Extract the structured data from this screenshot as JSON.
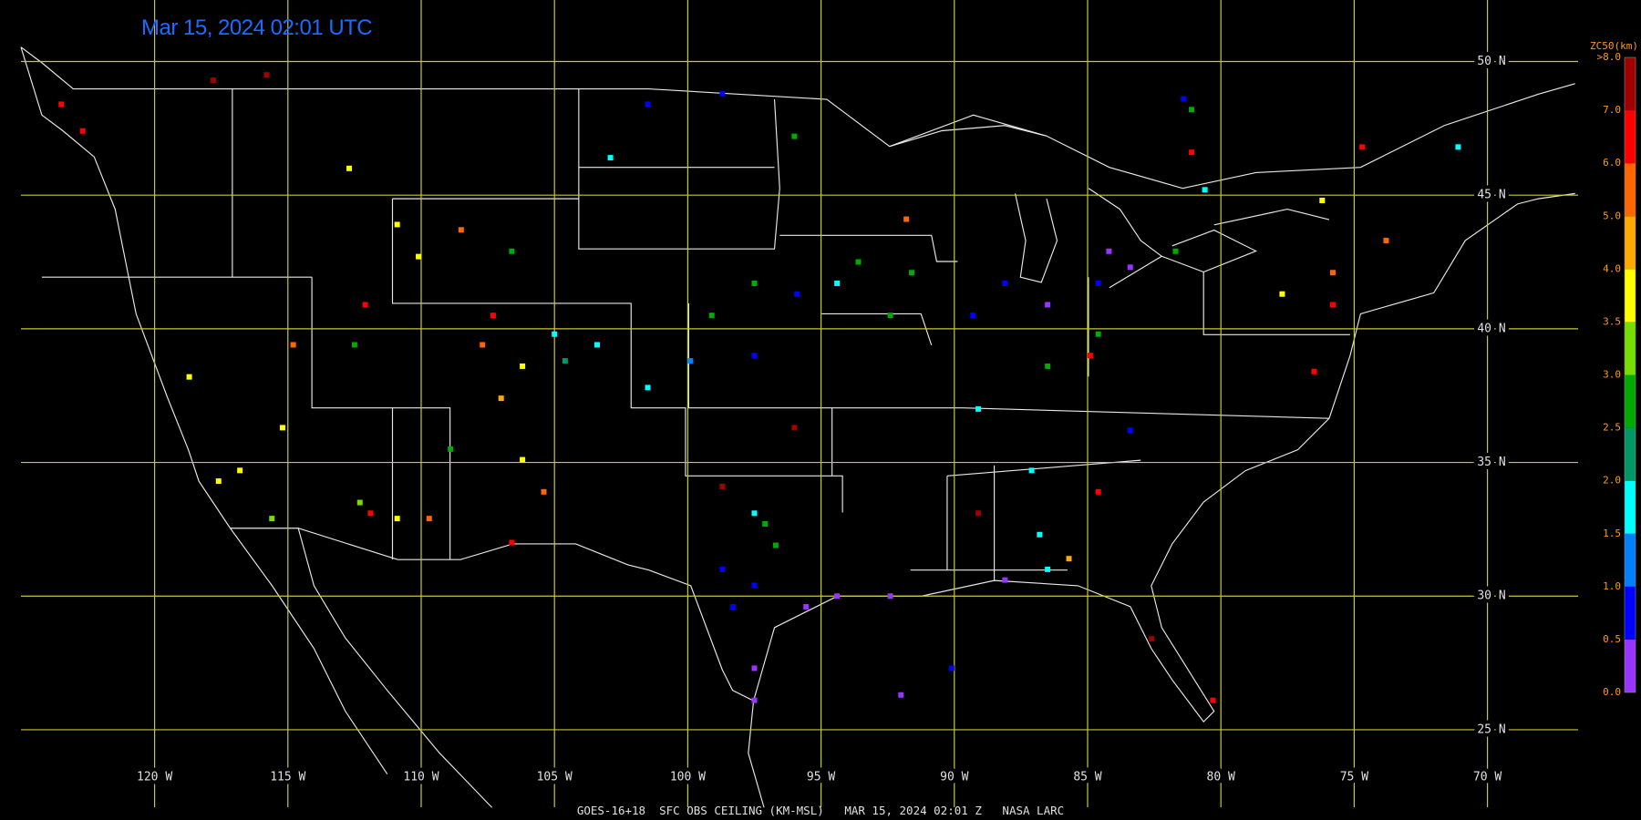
{
  "chart_data": {
    "type": "map",
    "title": "Mar 15, 2024 02:01 UTC",
    "footer": "GOES-16+18  SFC OBS CEILING (KM-MSL)   MAR 15, 2024 02:01 Z   NASA LARC",
    "xlim": [
      -125.8,
      -66.6
    ],
    "ylim": [
      52.3,
      22.1
    ],
    "xticks": [
      {
        "value": -120,
        "label": "120 W"
      },
      {
        "value": -115,
        "label": "115 W"
      },
      {
        "value": -110,
        "label": "110 W"
      },
      {
        "value": -105,
        "label": "105 W"
      },
      {
        "value": -100,
        "label": "100 W"
      },
      {
        "value": -95,
        "label": "95 W"
      },
      {
        "value": -90,
        "label": "90 W"
      },
      {
        "value": -85,
        "label": "85 W"
      },
      {
        "value": -80,
        "label": "80 W"
      },
      {
        "value": -75,
        "label": "75 W"
      },
      {
        "value": -70,
        "label": "70 W"
      }
    ],
    "yticks": [
      {
        "value": 50,
        "label": "50 N"
      },
      {
        "value": 45,
        "label": "45 N"
      },
      {
        "value": 40,
        "label": "40 N"
      },
      {
        "value": 35,
        "label": "35 N"
      },
      {
        "value": 30,
        "label": "30 N"
      },
      {
        "value": 25,
        "label": "25 N"
      }
    ],
    "grid": true,
    "legend": {
      "title": "ZC50(km)",
      "ticks": [
        {
          "value": 0,
          "label": "0.0"
        },
        {
          "value": 0.5,
          "label": "0.5"
        },
        {
          "value": 1,
          "label": "1.0"
        },
        {
          "value": 1.5,
          "label": "1.5"
        },
        {
          "value": 2,
          "label": "2.0"
        },
        {
          "value": 2.5,
          "label": "2.5"
        },
        {
          "value": 3,
          "label": "3.0"
        },
        {
          "value": 3.5,
          "label": "3.5"
        },
        {
          "value": 4,
          "label": "4.0"
        },
        {
          "value": 5,
          "label": "5.0"
        },
        {
          "value": 6,
          "label": "6.0"
        },
        {
          "value": 7,
          "label": "7.0"
        },
        {
          "value": 8,
          "label": ">8.0"
        }
      ],
      "colors": [
        "#9933ff",
        "#0000ff",
        "#0080ff",
        "#00ffff",
        "#009966",
        "#00aa00",
        "#77dd00",
        "#ffff00",
        "#ffaa00",
        "#ff6600",
        "#ff0000",
        "#a00000"
      ]
    },
    "stations": {
      "lon": [
        -95.56,
        -94.4,
        -92.4,
        -88.1,
        -98.3,
        -97.5,
        -98.7,
        -97.1,
        -96.7,
        -97.5,
        -88.1,
        -89.3,
        -86.5,
        -84.2,
        -83.4,
        -84.6,
        -86.5,
        -84.6,
        -89.1,
        -87.1,
        -86.8,
        -86.5,
        -92.4,
        -93.6,
        -91.6,
        -94.4,
        -95.9,
        -97.5,
        -99.1,
        -97.5,
        -99.9,
        -101.5,
        -103.4,
        -105.0,
        -104.6,
        -106.2,
        -107.7,
        -107.3,
        -107.0,
        -108.9,
        -106.2,
        -108.5,
        -110.1,
        -106.6,
        -110.9,
        -112.1,
        -112.5,
        -114.8,
        -118.7,
        -115.2,
        -116.8,
        -117.6,
        -115.6,
        -110.9,
        -111.9,
        -112.3,
        -109.7,
        -105.4,
        -106.6,
        -101.5,
        -98.7,
        -96.0,
        -102.9,
        -91.8,
        -80.6,
        -81.7,
        -77.7,
        -75.8,
        -73.8,
        -76.2,
        -74.7,
        -71.1,
        -81.1,
        -82.6,
        -80.3,
        -85.7,
        -84.6,
        -83.4,
        -81.4,
        -90.1,
        -92.0,
        -97.5,
        -97.5,
        -76.5,
        -75.8,
        -81.1,
        -123.5,
        -122.7,
        -117.8,
        -115.8,
        -112.7,
        -98.7,
        -96.0,
        -89.1,
        -84.9
      ],
      "lat": [
        29.6,
        30.0,
        30.0,
        30.6,
        29.6,
        30.4,
        31.0,
        32.7,
        31.9,
        33.1,
        41.7,
        40.5,
        40.9,
        42.9,
        42.3,
        41.7,
        38.6,
        39.8,
        37.0,
        34.7,
        32.3,
        31.0,
        40.5,
        42.5,
        42.1,
        41.7,
        41.3,
        39.0,
        40.5,
        41.7,
        38.8,
        37.8,
        39.4,
        39.8,
        38.8,
        38.6,
        39.4,
        40.5,
        37.4,
        35.5,
        35.1,
        43.7,
        42.7,
        42.9,
        43.9,
        40.9,
        39.4,
        39.4,
        38.2,
        36.3,
        34.7,
        34.3,
        32.9,
        32.9,
        33.1,
        33.5,
        32.9,
        33.9,
        32.0,
        48.4,
        48.8,
        47.2,
        46.4,
        44.1,
        45.2,
        42.9,
        41.3,
        42.1,
        43.3,
        44.8,
        46.8,
        46.8,
        48.2,
        28.4,
        26.1,
        31.4,
        33.9,
        36.2,
        48.6,
        27.3,
        26.3,
        27.3,
        26.1,
        38.4,
        40.9,
        46.6,
        48.4,
        47.4,
        49.3,
        49.5,
        46.0,
        34.1,
        36.3,
        33.1,
        39.0
      ],
      "values": [
        0.3,
        0.3,
        0.3,
        0.3,
        0.8,
        0.8,
        0.8,
        2.8,
        2.8,
        1.8,
        0.8,
        0.8,
        0.3,
        0.3,
        0.3,
        0.8,
        2.8,
        2.8,
        1.8,
        1.8,
        1.8,
        1.8,
        2.8,
        2.8,
        2.8,
        1.8,
        0.8,
        0.8,
        2.8,
        2.8,
        1.2,
        1.8,
        1.8,
        1.8,
        2.2,
        3.8,
        5.5,
        6.5,
        4.5,
        2.8,
        3.8,
        5.5,
        3.8,
        2.8,
        3.8,
        6.5,
        2.8,
        5.5,
        3.8,
        3.8,
        3.8,
        3.8,
        3.2,
        3.8,
        6.5,
        3.2,
        5.5,
        5.5,
        6.5,
        0.8,
        0.8,
        2.8,
        1.8,
        5.5,
        1.8,
        2.8,
        3.8,
        5.5,
        5.5,
        3.8,
        6.5,
        1.8,
        2.8,
        7.5,
        6.5,
        4.5,
        6.5,
        0.8,
        0.8,
        0.8,
        0.3,
        0.3,
        0.3,
        6.5,
        6.5,
        6.5,
        6.5,
        6.5,
        7.5,
        7.5,
        3.8,
        7.5,
        7.5,
        7.5,
        6.5
      ]
    }
  }
}
